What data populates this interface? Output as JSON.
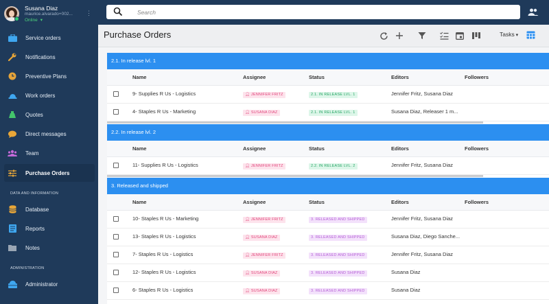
{
  "user": {
    "name": "Susana Diaz",
    "email": "maurice.alvarado+002...",
    "status": "Online"
  },
  "nav": [
    {
      "label": "Service orders",
      "icon": "briefcase-icon",
      "color": "#3fa7f0"
    },
    {
      "label": "Notifications",
      "icon": "wrench-icon",
      "color": "#e8a638"
    },
    {
      "label": "Preventive Plans",
      "icon": "clock-icon",
      "color": "#e4a33a"
    },
    {
      "label": "Work orders",
      "icon": "helmet-icon",
      "color": "#3fa7f0"
    },
    {
      "label": "Quotes",
      "icon": "money-bag-icon",
      "color": "#44c56b"
    },
    {
      "label": "Direct messages",
      "icon": "chat-icon",
      "color": "#e8a638"
    },
    {
      "label": "Team",
      "icon": "team-icon",
      "color": "#c56ad9"
    },
    {
      "label": "Purchase Orders",
      "icon": "sliders-icon",
      "color": "#e8a638",
      "active": true
    }
  ],
  "sections": {
    "data": "DATA AND INFORMATION",
    "admin": "ADMINISTRATION"
  },
  "nav2": [
    {
      "label": "Database",
      "icon": "database-icon",
      "color": "#e8a638"
    },
    {
      "label": "Reports",
      "icon": "report-icon",
      "color": "#3fa7f0"
    },
    {
      "label": "Notes",
      "icon": "folder-icon",
      "color": "#9aa6b4"
    }
  ],
  "nav3": [
    {
      "label": "Administrator",
      "icon": "admin-icon",
      "color": "#3fa7f0"
    }
  ],
  "search": {
    "placeholder": "Search"
  },
  "page": {
    "title": "Purchase Orders",
    "tasks_label": "Tasks"
  },
  "columns": {
    "name": "Name",
    "assignee": "Assignee",
    "status": "Status",
    "editors": "Editors",
    "followers": "Followers"
  },
  "groups": [
    {
      "title": "2.1. In release lvl. 1",
      "rows": [
        {
          "name": "9- Supplies R Us - Logistics",
          "assignee": "JENNIFER FRITZ",
          "status": "2.1. IN RELEASE LVL. 1",
          "editors": "Jennifer Fritz, Susana Diaz"
        },
        {
          "name": "4- Staples R Us - Marketing",
          "assignee": "SUSANA DIAZ",
          "status": "2.1. IN RELEASE LVL. 1",
          "editors": "Susana Diaz, Releaser 1 m..."
        }
      ]
    },
    {
      "title": "2.2. In release lvl. 2",
      "rows": [
        {
          "name": "11- Supplies R Us - Logistics",
          "assignee": "JENNIFER FRITZ",
          "status": "2.2. IN RELEASE LVL. 2",
          "editors": "Jennifer Fritz, Susana Diaz"
        }
      ]
    },
    {
      "title": "3. Released and shipped",
      "rows": [
        {
          "name": "10- Staples R Us - Marketing",
          "assignee": "JENNIFER FRITZ",
          "status": "3. RELEASED AND SHIPPED",
          "editors": "Jennifer Fritz, Susana Diaz"
        },
        {
          "name": "13- Staples R Us - Logistics",
          "assignee": "SUSANA DIAZ",
          "status": "3. RELEASED AND SHIPPED",
          "editors": "Susana Diaz, Diego Sanche..."
        },
        {
          "name": "7- Staples R Us - Logistics",
          "assignee": "JENNIFER FRITZ",
          "status": "3. RELEASED AND SHIPPED",
          "editors": "Jennifer Fritz, Susana Diaz"
        },
        {
          "name": "12- Staples R Us - Logistics",
          "assignee": "SUSANA DIAZ",
          "status": "3. RELEASED AND SHIPPED",
          "editors": "Susana Diaz"
        },
        {
          "name": "6- Staples R Us - Logistics",
          "assignee": "SUSANA DIAZ",
          "status": "3. RELEASED AND SHIPPED",
          "editors": "Susana Diaz"
        }
      ]
    }
  ],
  "colors": {
    "sidebar": "#1f3a5a",
    "group_header": "#2c8ff0",
    "assignee_badge": "#e0457b",
    "status_release": "#27a565",
    "status_shipped": "#b55fd6"
  }
}
